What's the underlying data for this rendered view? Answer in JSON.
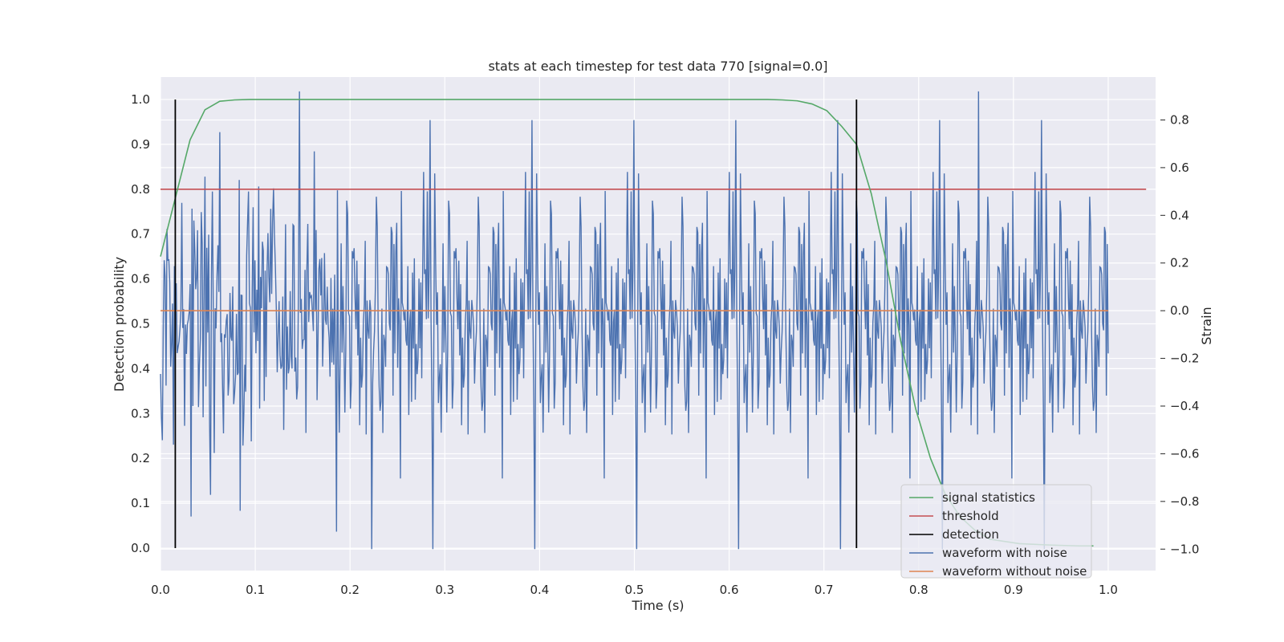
{
  "chart_data": {
    "type": "line",
    "title": "stats at each timestep for test data 770 [signal=0.0]",
    "xlabel": "Time (s)",
    "ylabel_left": "Detection probability",
    "ylabel_right": "Strain",
    "xlim": [
      0.0,
      1.05
    ],
    "ylim_left": [
      -0.05,
      1.05
    ],
    "ylim_right": [
      -1.09,
      0.98
    ],
    "x_ticks": [
      "0.0",
      "0.1",
      "0.2",
      "0.3",
      "0.4",
      "0.5",
      "0.6",
      "0.7",
      "0.8",
      "0.9",
      "1.0"
    ],
    "y_ticks_left": [
      "0.0",
      "0.1",
      "0.2",
      "0.3",
      "0.4",
      "0.5",
      "0.6",
      "0.7",
      "0.8",
      "0.9",
      "1.0"
    ],
    "y_ticks_right": [
      "−1.0",
      "−0.8",
      "−0.6",
      "−0.4",
      "−0.2",
      "0.0",
      "0.2",
      "0.4",
      "0.6",
      "0.8"
    ],
    "x_tick_values": [
      0.0,
      0.1,
      0.2,
      0.3,
      0.4,
      0.5,
      0.6,
      0.7,
      0.8,
      0.9,
      1.0
    ],
    "y_tick_values_left": [
      0.0,
      0.1,
      0.2,
      0.3,
      0.4,
      0.5,
      0.6,
      0.7,
      0.8,
      0.9,
      1.0
    ],
    "y_tick_values_right": [
      -1.0,
      -0.8,
      -0.6,
      -0.4,
      -0.2,
      0.0,
      0.2,
      0.4,
      0.6,
      0.8
    ],
    "grid": true,
    "legend_placement": "lower-right",
    "background_color": "#eaeaf2",
    "series": [
      {
        "name": "signal statistics",
        "axis": "left",
        "color": "#55a868",
        "x": [
          0.0,
          0.0156,
          0.0312,
          0.0469,
          0.0625,
          0.0781,
          0.0938,
          0.5,
          0.6406,
          0.6562,
          0.6719,
          0.6875,
          0.7031,
          0.7188,
          0.7344,
          0.75,
          0.7656,
          0.7812,
          0.7969,
          0.8125,
          0.8281,
          0.8438,
          0.8594,
          0.875,
          0.9062,
          0.9375,
          0.9688,
          0.9844
        ],
        "y": [
          0.65,
          0.78,
          0.91,
          0.977,
          0.996,
          0.999,
          1.0,
          1.0,
          1.0,
          0.999,
          0.997,
          0.99,
          0.975,
          0.94,
          0.9,
          0.79,
          0.64,
          0.46,
          0.31,
          0.2,
          0.12,
          0.07,
          0.04,
          0.02,
          0.01,
          0.007,
          0.005,
          0.005
        ]
      },
      {
        "name": "threshold",
        "axis": "left",
        "color": "#c44e52",
        "x": [
          0.0,
          1.04
        ],
        "y": [
          0.8,
          0.8
        ]
      },
      {
        "name": "detection",
        "axis": "left",
        "color": "#000000",
        "vlines": [
          0.0156,
          0.7344
        ],
        "ymin": 0.0,
        "ymax": 1.0
      },
      {
        "name": "waveform with noise",
        "axis": "right",
        "color": "#4c72b0",
        "x_start": 0.0,
        "x_end": 1.0,
        "n_points": 1024,
        "y_min": -1.0,
        "y_max": 0.92,
        "note_values": "noise-like samples (approx. std 0.3)"
      },
      {
        "name": "waveform without noise",
        "axis": "right",
        "color": "#dd8452",
        "x": [
          0.0,
          1.0
        ],
        "y": [
          0.0,
          0.0
        ]
      }
    ]
  }
}
